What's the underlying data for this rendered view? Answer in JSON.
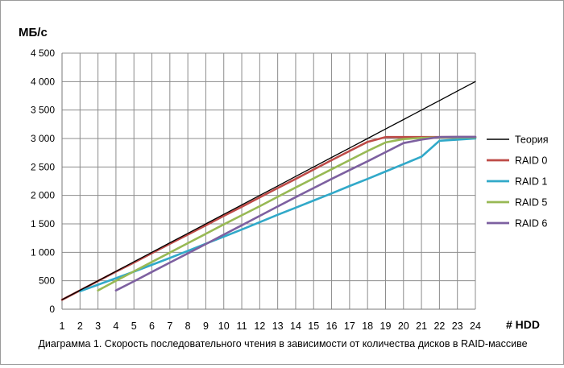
{
  "chart_data": {
    "type": "line",
    "ylabel": "МБ/с",
    "xlabel": "# HDD",
    "caption": "Диаграмма 1. Скорость последовательного чтения в зависимости от количества дисков в RAID-массиве",
    "x": [
      1,
      2,
      3,
      4,
      5,
      6,
      7,
      8,
      9,
      10,
      11,
      12,
      13,
      14,
      15,
      16,
      17,
      18,
      19,
      20,
      21,
      22,
      23,
      24
    ],
    "xlim": [
      1,
      24
    ],
    "ylim": [
      0,
      4500
    ],
    "yticks": [
      0,
      500,
      1000,
      1500,
      2000,
      2500,
      3000,
      3500,
      4000,
      4500
    ],
    "ytick_labels": [
      "0",
      "500",
      "1 000",
      "1 500",
      "2 000",
      "2 500",
      "3 000",
      "3 500",
      "4 000",
      "4 500"
    ],
    "xtick_labels": [
      "1",
      "2",
      "3",
      "4",
      "5",
      "6",
      "7",
      "8",
      "9",
      "10",
      "11",
      "12",
      "13",
      "14",
      "15",
      "16",
      "17",
      "18",
      "19",
      "20",
      "21",
      "22",
      "23",
      "24"
    ],
    "grid": true,
    "legend_position": "right",
    "series": [
      {
        "name": "Теория",
        "color": "#000000",
        "x": [
          1,
          2,
          3,
          4,
          5,
          6,
          7,
          8,
          9,
          10,
          11,
          12,
          13,
          14,
          15,
          16,
          17,
          18,
          19,
          20,
          21,
          22,
          23,
          24
        ],
        "values": [
          167,
          333,
          500,
          667,
          833,
          1000,
          1167,
          1333,
          1500,
          1667,
          1833,
          2000,
          2167,
          2333,
          2500,
          2667,
          2833,
          3000,
          3167,
          3333,
          3500,
          3667,
          3833,
          4000
        ]
      },
      {
        "name": "RAID 0",
        "color": "#be4b48",
        "x": [
          1,
          2,
          3,
          4,
          5,
          6,
          7,
          8,
          9,
          10,
          11,
          12,
          13,
          14,
          15,
          16,
          17,
          18,
          19,
          20,
          21,
          22,
          23,
          24
        ],
        "values": [
          165,
          330,
          495,
          660,
          820,
          985,
          1150,
          1310,
          1475,
          1640,
          1800,
          1965,
          2130,
          2290,
          2455,
          2620,
          2780,
          2940,
          3025,
          3025,
          3025,
          3025,
          3025,
          3025
        ]
      },
      {
        "name": "RAID 1",
        "color": "#31a9c9",
        "x": [
          2,
          3,
          4,
          5,
          6,
          7,
          8,
          9,
          10,
          11,
          12,
          13,
          14,
          15,
          16,
          17,
          18,
          19,
          20,
          21,
          22,
          23,
          24
        ],
        "values": [
          315,
          430,
          545,
          660,
          780,
          900,
          1025,
          1150,
          1275,
          1400,
          1530,
          1660,
          1785,
          1910,
          2035,
          2165,
          2290,
          2420,
          2550,
          2680,
          2960,
          2980,
          3000
        ]
      },
      {
        "name": "RAID 5",
        "color": "#98b954",
        "x": [
          3,
          4,
          5,
          6,
          7,
          8,
          9,
          10,
          11,
          12,
          13,
          14,
          15,
          16,
          17,
          18,
          19,
          20,
          21,
          22,
          23,
          24
        ],
        "values": [
          330,
          500,
          665,
          830,
          995,
          1160,
          1325,
          1490,
          1650,
          1810,
          1975,
          2140,
          2300,
          2460,
          2620,
          2780,
          2930,
          2990,
          3010,
          3020,
          3020,
          3020
        ]
      },
      {
        "name": "RAID 6",
        "color": "#7d60a0",
        "x": [
          4,
          5,
          6,
          7,
          8,
          9,
          10,
          11,
          12,
          13,
          14,
          15,
          16,
          17,
          18,
          19,
          20,
          21,
          22,
          23,
          24
        ],
        "values": [
          330,
          490,
          655,
          820,
          980,
          1145,
          1310,
          1475,
          1640,
          1805,
          1970,
          2130,
          2290,
          2445,
          2600,
          2760,
          2920,
          2980,
          3025,
          3030,
          3030
        ]
      }
    ]
  }
}
